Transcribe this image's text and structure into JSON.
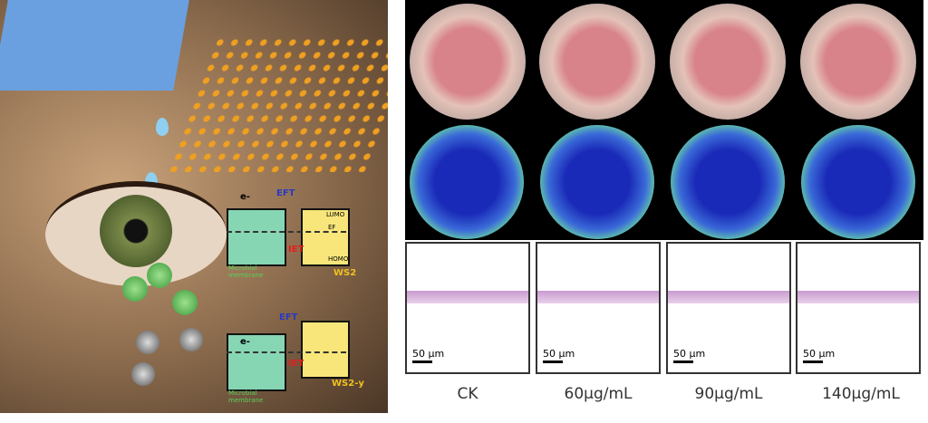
{
  "illustration": {
    "diagram_top": {
      "top_arrow": "EFT",
      "bottom_arrow": "IET",
      "electron": "e-",
      "lumo": "LUMO",
      "fermi": "EF",
      "homo": "HOMO",
      "membrane": "Microbial membrane",
      "material": "WS2"
    },
    "diagram_bottom": {
      "top_arrow": "EFT",
      "bottom_arrow": "IET",
      "electron": "e-",
      "membrane": "Microbial membrane",
      "material": "WS2-y"
    }
  },
  "panels": {
    "scale_bar": "50 µm",
    "columns": [
      {
        "label": "CK"
      },
      {
        "label": "60µg/mL"
      },
      {
        "label": "90µg/mL"
      },
      {
        "label": "140µg/mL"
      }
    ]
  }
}
